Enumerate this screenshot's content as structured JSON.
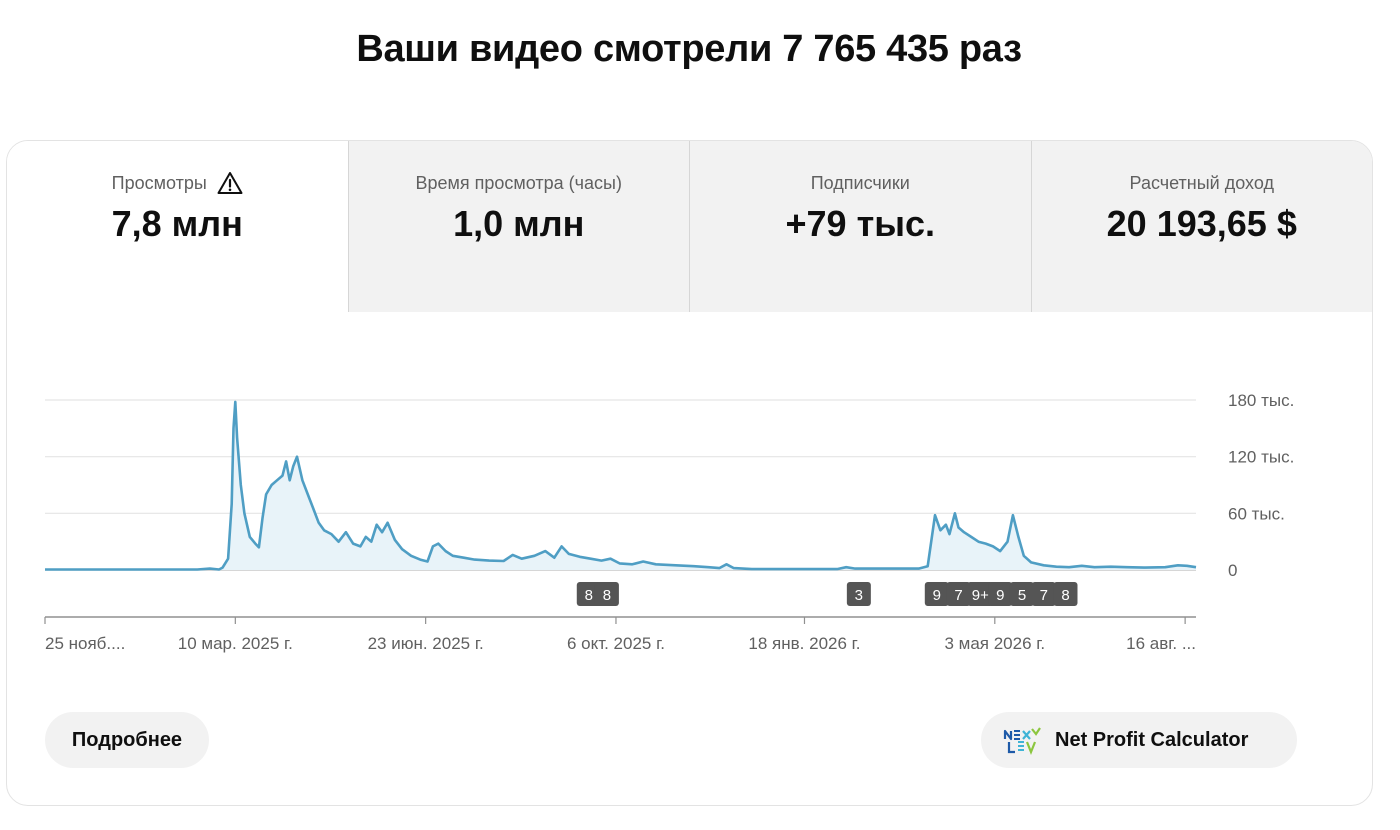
{
  "headline": "Ваши видео смотрели 7 765 435 раз",
  "tabs": [
    {
      "label": "Просмотры",
      "value": "7,8 млн",
      "icon": "warning-icon"
    },
    {
      "label": "Время просмотра (часы)",
      "value": "1,0 млн"
    },
    {
      "label": "Подписчики",
      "value": "+79 тыс."
    },
    {
      "label": "Расчетный доход",
      "value": "20 193,65 $"
    }
  ],
  "buttons": {
    "more_label": "Подробнее",
    "calc_label": "Net Profit Calculator"
  },
  "colors": {
    "line": "#4f9ec4",
    "fill": "#e8f3f9",
    "badge": "#555555"
  },
  "chart_data": {
    "type": "area",
    "y_ticks": [
      {
        "value": 180000,
        "label": "180 тыс."
      },
      {
        "value": 120000,
        "label": "120 тыс."
      },
      {
        "value": 60000,
        "label": "60 тыс."
      },
      {
        "value": 0,
        "label": "0"
      }
    ],
    "ylim": [
      0,
      180000
    ],
    "x_start": "2024-11-25",
    "x_end": "2026-08-22",
    "x_ticks": [
      {
        "date": "2024-11-25",
        "label": "25 нояб...."
      },
      {
        "date": "2025-03-10",
        "label": "10 мар. 2025 г."
      },
      {
        "date": "2025-06-23",
        "label": "23 июн. 2025 г."
      },
      {
        "date": "2025-10-06",
        "label": "6 окт. 2025 г."
      },
      {
        "date": "2026-01-18",
        "label": "18 янв. 2026 г."
      },
      {
        "date": "2026-05-03",
        "label": "3 мая 2026 г."
      },
      {
        "date": "2026-08-16",
        "label": "16 авг. ..."
      }
    ],
    "series": [
      {
        "points": [
          [
            "2024-11-25",
            500
          ],
          [
            "2025-02-17",
            500
          ],
          [
            "2025-02-24",
            1500
          ],
          [
            "2025-03-01",
            500
          ],
          [
            "2025-03-03",
            2500
          ],
          [
            "2025-03-06",
            12000
          ],
          [
            "2025-03-08",
            70000
          ],
          [
            "2025-03-09",
            150000
          ],
          [
            "2025-03-10",
            178000
          ],
          [
            "2025-03-11",
            140000
          ],
          [
            "2025-03-13",
            90000
          ],
          [
            "2025-03-15",
            60000
          ],
          [
            "2025-03-18",
            35000
          ],
          [
            "2025-03-21",
            28000
          ],
          [
            "2025-03-23",
            24000
          ],
          [
            "2025-03-25",
            55000
          ],
          [
            "2025-03-27",
            80000
          ],
          [
            "2025-03-30",
            90000
          ],
          [
            "2025-04-02",
            95000
          ],
          [
            "2025-04-05",
            100000
          ],
          [
            "2025-04-07",
            115000
          ],
          [
            "2025-04-09",
            95000
          ],
          [
            "2025-04-11",
            110000
          ],
          [
            "2025-04-13",
            120000
          ],
          [
            "2025-04-16",
            95000
          ],
          [
            "2025-04-19",
            80000
          ],
          [
            "2025-04-22",
            65000
          ],
          [
            "2025-04-25",
            50000
          ],
          [
            "2025-04-28",
            42000
          ],
          [
            "2025-05-02",
            38000
          ],
          [
            "2025-05-06",
            30000
          ],
          [
            "2025-05-10",
            40000
          ],
          [
            "2025-05-14",
            28000
          ],
          [
            "2025-05-18",
            25000
          ],
          [
            "2025-05-21",
            35000
          ],
          [
            "2025-05-24",
            30000
          ],
          [
            "2025-05-27",
            48000
          ],
          [
            "2025-05-30",
            40000
          ],
          [
            "2025-06-02",
            50000
          ],
          [
            "2025-06-06",
            32000
          ],
          [
            "2025-06-10",
            22000
          ],
          [
            "2025-06-15",
            15000
          ],
          [
            "2025-06-20",
            11000
          ],
          [
            "2025-06-24",
            9000
          ],
          [
            "2025-06-27",
            25000
          ],
          [
            "2025-06-30",
            28000
          ],
          [
            "2025-07-04",
            20000
          ],
          [
            "2025-07-08",
            15000
          ],
          [
            "2025-07-14",
            13000
          ],
          [
            "2025-07-20",
            11000
          ],
          [
            "2025-07-28",
            10000
          ],
          [
            "2025-08-05",
            9500
          ],
          [
            "2025-08-10",
            16000
          ],
          [
            "2025-08-15",
            12000
          ],
          [
            "2025-08-22",
            15000
          ],
          [
            "2025-08-28",
            20000
          ],
          [
            "2025-09-02",
            13000
          ],
          [
            "2025-09-06",
            25000
          ],
          [
            "2025-09-10",
            17000
          ],
          [
            "2025-09-16",
            14000
          ],
          [
            "2025-09-22",
            12000
          ],
          [
            "2025-09-28",
            10000
          ],
          [
            "2025-10-03",
            12000
          ],
          [
            "2025-10-08",
            7000
          ],
          [
            "2025-10-15",
            6000
          ],
          [
            "2025-10-21",
            9000
          ],
          [
            "2025-10-28",
            6000
          ],
          [
            "2025-11-08",
            5000
          ],
          [
            "2025-11-18",
            4000
          ],
          [
            "2025-11-26",
            3000
          ],
          [
            "2025-12-02",
            2000
          ],
          [
            "2025-12-06",
            6000
          ],
          [
            "2025-12-10",
            2000
          ],
          [
            "2025-12-20",
            1000
          ],
          [
            "2026-02-05",
            1000
          ],
          [
            "2026-02-10",
            3000
          ],
          [
            "2026-02-15",
            1500
          ],
          [
            "2026-03-22",
            1500
          ],
          [
            "2026-03-27",
            4000
          ],
          [
            "2026-03-31",
            58000
          ],
          [
            "2026-04-03",
            42000
          ],
          [
            "2026-04-06",
            48000
          ],
          [
            "2026-04-08",
            38000
          ],
          [
            "2026-04-11",
            60000
          ],
          [
            "2026-04-13",
            45000
          ],
          [
            "2026-04-16",
            40000
          ],
          [
            "2026-04-20",
            35000
          ],
          [
            "2026-04-24",
            30000
          ],
          [
            "2026-04-28",
            28000
          ],
          [
            "2026-05-02",
            25000
          ],
          [
            "2026-05-06",
            20000
          ],
          [
            "2026-05-10",
            30000
          ],
          [
            "2026-05-13",
            58000
          ],
          [
            "2026-05-16",
            35000
          ],
          [
            "2026-05-19",
            15000
          ],
          [
            "2026-05-23",
            8000
          ],
          [
            "2026-05-30",
            5000
          ],
          [
            "2026-06-06",
            3500
          ],
          [
            "2026-06-13",
            3000
          ],
          [
            "2026-06-20",
            4500
          ],
          [
            "2026-06-27",
            3000
          ],
          [
            "2026-07-06",
            3500
          ],
          [
            "2026-07-15",
            3000
          ],
          [
            "2026-07-25",
            2500
          ],
          [
            "2026-08-05",
            3000
          ],
          [
            "2026-08-12",
            5000
          ],
          [
            "2026-08-17",
            4500
          ],
          [
            "2026-08-22",
            3000
          ]
        ]
      }
    ],
    "badges": [
      {
        "date": "2025-09-21",
        "label": "8"
      },
      {
        "date": "2025-10-01",
        "label": "8"
      },
      {
        "date": "2026-02-17",
        "label": "3"
      },
      {
        "date": "2026-04-01",
        "label": "9"
      },
      {
        "date": "2026-04-13",
        "label": "7"
      },
      {
        "date": "2026-04-25",
        "label": "9+"
      },
      {
        "date": "2026-05-06",
        "label": "9"
      },
      {
        "date": "2026-05-18",
        "label": "5"
      },
      {
        "date": "2026-05-30",
        "label": "7"
      },
      {
        "date": "2026-06-11",
        "label": "8"
      }
    ],
    "grid": true
  }
}
